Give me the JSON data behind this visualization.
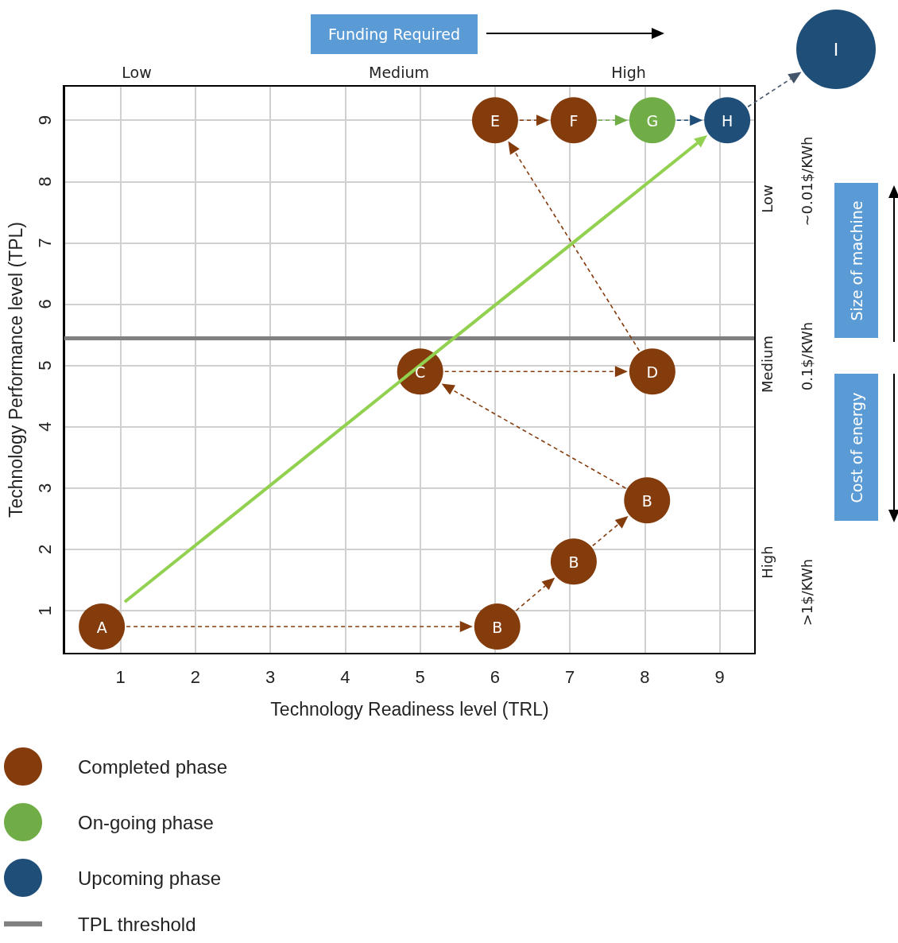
{
  "chart_data": {
    "type": "scatter",
    "xlabel": "Technology Readiness level (TRL)",
    "ylabel": "Technology Performance level (TPL)",
    "xlim": [
      0.25,
      9.47
    ],
    "xticks": [
      1,
      2,
      3,
      4,
      5,
      6,
      7,
      8,
      9
    ],
    "ylim": [
      0.3,
      9.56
    ],
    "yticks": [
      1,
      2,
      3,
      4,
      5,
      6,
      7,
      8,
      9
    ],
    "grid": true,
    "legend": "bottom left",
    "marker": "circle",
    "series": [
      {
        "name": "Completed phase",
        "color": "#843c0c",
        "x": [
          0.75,
          6.03,
          7.05,
          8.03,
          5,
          8.1,
          6,
          7.05
        ],
        "values": [
          0.74,
          0.74,
          1.8,
          2.8,
          4.9,
          4.9,
          9,
          9
        ]
      },
      {
        "name": "On-going phase",
        "color": "#70ad47",
        "x": [
          8.1
        ],
        "values": [
          9
        ]
      },
      {
        "name": "Upcoming phase",
        "color": "#1f4e79",
        "x": [
          9.1
        ],
        "values": [
          9
        ]
      }
    ],
    "ref_lines": [
      {
        "axis": "y",
        "value": 5.45,
        "label": "TPL threshold",
        "color": "#808080"
      }
    ],
    "annotations": [
      "Funding Required",
      "Low",
      "Medium",
      "High",
      "Low",
      "Medium",
      "High",
      "~0.01$/KWh",
      "0.1$/KWh",
      ">1$/KWh",
      "Size of machine",
      "Cost of energy",
      "I",
      {
        "text": "A",
        "x": 0.75,
        "y": 0.74
      },
      {
        "text": "B",
        "x": 6.03,
        "y": 0.74
      },
      {
        "text": "B",
        "x": 7.05,
        "y": 1.8
      },
      {
        "text": "B",
        "x": 8.03,
        "y": 2.8
      },
      {
        "text": "C",
        "x": 5,
        "y": 4.9
      },
      {
        "text": "D",
        "x": 8.1,
        "y": 4.9
      },
      {
        "text": "E",
        "x": 6,
        "y": 9
      },
      {
        "text": "F",
        "x": 7.05,
        "y": 9
      },
      {
        "text": "G",
        "x": 8.1,
        "y": 9
      },
      {
        "text": "H",
        "x": 9.1,
        "y": 9
      }
    ]
  }
}
